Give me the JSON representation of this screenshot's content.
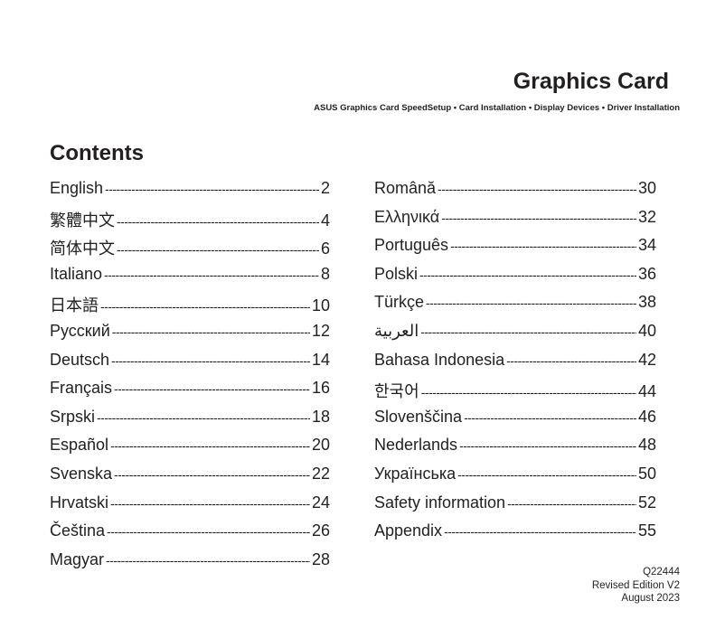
{
  "header": {
    "title": "Graphics Card",
    "subtitle": "ASUS Graphics Card SpeedSetup • Card Installation • Display Devices • Driver Installation"
  },
  "contents_heading": "Contents",
  "leader": "------------------------------------------------------------------------------------------",
  "left_entries": [
    {
      "label": "English",
      "page": "2"
    },
    {
      "label": "繁體中文",
      "page": "4"
    },
    {
      "label": "简体中文",
      "page": "6"
    },
    {
      "label": "Italiano",
      "page": "8"
    },
    {
      "label": "日本語",
      "page": "10"
    },
    {
      "label": "Русский",
      "page": "12"
    },
    {
      "label": "Deutsch",
      "page": "14"
    },
    {
      "label": "Français",
      "page": "16"
    },
    {
      "label": "Srpski",
      "page": "18"
    },
    {
      "label": "Español",
      "page": "20"
    },
    {
      "label": "Svenska",
      "page": "22"
    },
    {
      "label": "Hrvatski",
      "page": "24"
    },
    {
      "label": "Čeština",
      "page": "26"
    },
    {
      "label": "Magyar",
      "page": "28"
    }
  ],
  "right_entries": [
    {
      "label": "Română",
      "page": "30"
    },
    {
      "label": "Ελληνικά",
      "page": "32"
    },
    {
      "label": "Português",
      "page": "34"
    },
    {
      "label": "Polski",
      "page": "36"
    },
    {
      "label": "Türkçe",
      "page": "38"
    },
    {
      "label": "العربية",
      "page": "40"
    },
    {
      "label": "Bahasa Indonesia",
      "page": "42"
    },
    {
      "label": "한국어",
      "page": "44"
    },
    {
      "label": "Slovenščina",
      "page": "46"
    },
    {
      "label": "Nederlands",
      "page": "48"
    },
    {
      "label": "Українська",
      "page": "50"
    },
    {
      "label": "Safety information",
      "page": "52"
    },
    {
      "label": "Appendix",
      "page": "55"
    }
  ],
  "footer": {
    "code": "Q22444",
    "edition": "Revised Edition V2",
    "date": "August 2023"
  }
}
